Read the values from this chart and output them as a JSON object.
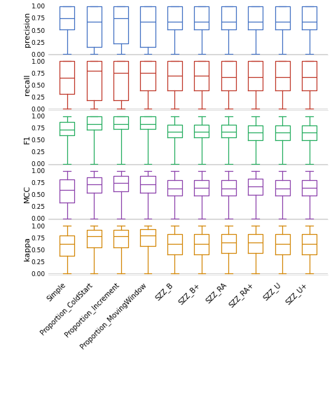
{
  "metrics": [
    "precision",
    "recall",
    "F1",
    "MCC",
    "kappa"
  ],
  "metric_colors": [
    "#4472c4",
    "#c0392b",
    "#27ae60",
    "#8e44ad",
    "#d4880a"
  ],
  "categories": [
    "Simple",
    "Proportion_ColdStart",
    "Proportion_Increment",
    "Proportion_MovingWindow",
    "SZZ_B",
    "SZZ_B+",
    "SZZ_RA",
    "SZZ_RA+",
    "SZZ_U",
    "SZZ_U+"
  ],
  "boxplot_data": {
    "precision": [
      [
        0.0,
        0.52,
        0.75,
        1.0,
        1.0
      ],
      [
        0.0,
        0.15,
        0.68,
        1.0,
        1.0
      ],
      [
        0.0,
        0.22,
        0.75,
        1.0,
        1.0
      ],
      [
        0.0,
        0.15,
        0.68,
        1.0,
        1.0
      ],
      [
        0.0,
        0.52,
        0.67,
        1.0,
        1.0
      ],
      [
        0.0,
        0.52,
        0.67,
        1.0,
        1.0
      ],
      [
        0.0,
        0.52,
        0.67,
        1.0,
        1.0
      ],
      [
        0.0,
        0.52,
        0.67,
        1.0,
        1.0
      ],
      [
        0.0,
        0.52,
        0.67,
        1.0,
        1.0
      ],
      [
        0.0,
        0.52,
        0.67,
        1.0,
        1.0
      ]
    ],
    "recall": [
      [
        0.0,
        0.32,
        0.65,
        1.0,
        1.0
      ],
      [
        0.0,
        0.18,
        0.8,
        1.0,
        1.0
      ],
      [
        0.0,
        0.18,
        0.75,
        1.0,
        1.0
      ],
      [
        0.0,
        0.38,
        0.75,
        1.0,
        1.0
      ],
      [
        0.0,
        0.38,
        0.7,
        1.0,
        1.0
      ],
      [
        0.0,
        0.38,
        0.7,
        1.0,
        1.0
      ],
      [
        0.0,
        0.38,
        0.67,
        1.0,
        1.0
      ],
      [
        0.0,
        0.38,
        0.67,
        1.0,
        1.0
      ],
      [
        0.0,
        0.38,
        0.67,
        1.0,
        1.0
      ],
      [
        0.0,
        0.38,
        0.67,
        1.0,
        1.0
      ]
    ],
    "F1": [
      [
        0.0,
        0.6,
        0.72,
        0.87,
        1.0
      ],
      [
        0.0,
        0.72,
        0.83,
        1.0,
        1.0
      ],
      [
        0.0,
        0.73,
        0.83,
        1.0,
        1.0
      ],
      [
        0.0,
        0.73,
        0.83,
        1.0,
        1.0
      ],
      [
        0.0,
        0.55,
        0.67,
        0.82,
        1.0
      ],
      [
        0.0,
        0.55,
        0.67,
        0.82,
        1.0
      ],
      [
        0.0,
        0.55,
        0.67,
        0.82,
        1.0
      ],
      [
        0.0,
        0.5,
        0.65,
        0.8,
        1.0
      ],
      [
        0.0,
        0.5,
        0.65,
        0.8,
        1.0
      ],
      [
        0.0,
        0.5,
        0.65,
        0.8,
        1.0
      ]
    ],
    "MCC": [
      [
        0.0,
        0.33,
        0.6,
        0.82,
        1.0
      ],
      [
        0.0,
        0.55,
        0.72,
        0.87,
        1.0
      ],
      [
        0.0,
        0.57,
        0.75,
        0.9,
        1.0
      ],
      [
        0.0,
        0.55,
        0.72,
        0.9,
        1.0
      ],
      [
        0.0,
        0.48,
        0.63,
        0.8,
        1.0
      ],
      [
        0.0,
        0.48,
        0.65,
        0.8,
        1.0
      ],
      [
        0.0,
        0.48,
        0.63,
        0.8,
        1.0
      ],
      [
        0.0,
        0.5,
        0.68,
        0.83,
        1.0
      ],
      [
        0.0,
        0.48,
        0.63,
        0.8,
        1.0
      ],
      [
        0.0,
        0.48,
        0.65,
        0.8,
        1.0
      ]
    ],
    "kappa": [
      [
        0.0,
        0.37,
        0.62,
        0.8,
        1.0
      ],
      [
        0.0,
        0.55,
        0.78,
        0.92,
        1.0
      ],
      [
        0.0,
        0.55,
        0.78,
        0.92,
        1.0
      ],
      [
        0.0,
        0.57,
        0.8,
        0.93,
        1.0
      ],
      [
        0.0,
        0.4,
        0.62,
        0.82,
        1.0
      ],
      [
        0.0,
        0.4,
        0.62,
        0.82,
        1.0
      ],
      [
        0.0,
        0.43,
        0.65,
        0.82,
        1.0
      ],
      [
        0.0,
        0.43,
        0.65,
        0.83,
        1.0
      ],
      [
        0.0,
        0.4,
        0.62,
        0.82,
        1.0
      ],
      [
        0.0,
        0.4,
        0.62,
        0.82,
        1.0
      ]
    ]
  },
  "figsize": [
    4.74,
    5.95
  ],
  "dpi": 100,
  "background_color": "#ffffff",
  "ylim": [
    -0.02,
    1.05
  ],
  "yticks": [
    0.0,
    0.25,
    0.5,
    0.75,
    1.0
  ]
}
